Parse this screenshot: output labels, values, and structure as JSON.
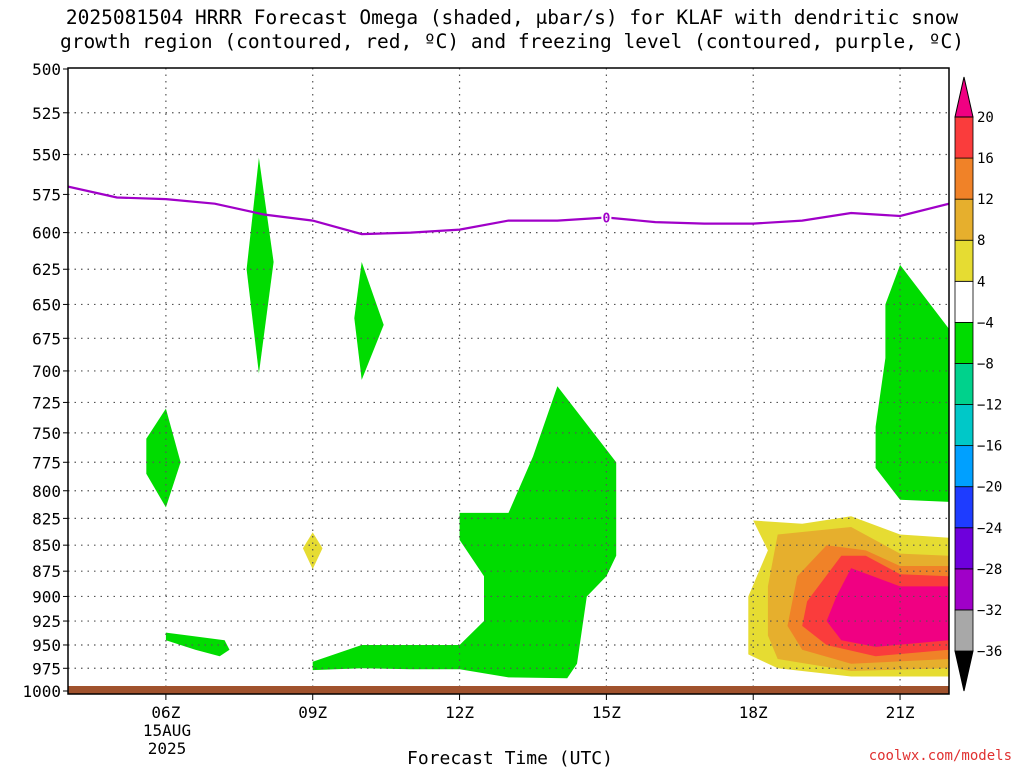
{
  "title_line1": "2025081504 HRRR Forecast Omega (shaded, μbar/s) for KLAF with dendritic snow",
  "title_line2": "growth region (contoured, red, ºC) and freezing level (contoured, purple, ºC)",
  "credit": "coolwx.com/models",
  "chart_data": {
    "type": "heatmap",
    "xlabel": "Forecast Time (UTC)",
    "x_ticks": [
      {
        "hour": 6,
        "label": "06Z"
      },
      {
        "hour": 9,
        "label": "09Z"
      },
      {
        "hour": 12,
        "label": "12Z"
      },
      {
        "hour": 15,
        "label": "15Z"
      },
      {
        "hour": 18,
        "label": "18Z"
      },
      {
        "hour": 21,
        "label": "21Z"
      }
    ],
    "date_label": [
      "15AUG",
      "2025"
    ],
    "xlim": [
      4,
      22
    ],
    "y_scale": "log",
    "ylim": [
      1000,
      500
    ],
    "y_ticks": [
      500,
      525,
      550,
      575,
      600,
      625,
      650,
      675,
      700,
      725,
      750,
      775,
      800,
      825,
      850,
      875,
      900,
      925,
      950,
      975,
      1000
    ],
    "grid": true,
    "colorbar": {
      "levels": [
        -36,
        -32,
        -28,
        -24,
        -20,
        -16,
        -12,
        -8,
        -4,
        4,
        8,
        12,
        16,
        20
      ],
      "colors": [
        "#000000",
        "#a8a8a8",
        "#a000c8",
        "#6e00dc",
        "#1e3cff",
        "#00a0ff",
        "#00c8c8",
        "#00d28c",
        "#00dc00",
        "#ffffff",
        "#e6dc32",
        "#e6af2d",
        "#f08228",
        "#fa3c3c",
        "#f00082"
      ]
    },
    "freezing_level": {
      "color": "#a000c8",
      "label": "0",
      "label_hour": 15,
      "points": [
        [
          4,
          570
        ],
        [
          5,
          577
        ],
        [
          6,
          578
        ],
        [
          7,
          581
        ],
        [
          8,
          588
        ],
        [
          9,
          592
        ],
        [
          10,
          601
        ],
        [
          11,
          600
        ],
        [
          12,
          598
        ],
        [
          13,
          592
        ],
        [
          14,
          592
        ],
        [
          15,
          590
        ],
        [
          16,
          593
        ],
        [
          17,
          594
        ],
        [
          18,
          594
        ],
        [
          19,
          592
        ],
        [
          20,
          587
        ],
        [
          21,
          589
        ],
        [
          22,
          581
        ]
      ]
    },
    "omega_regions": [
      {
        "value_range": [
          -8,
          -4
        ],
        "color": "#00dc00",
        "points": [
          [
            7.9,
            552
          ],
          [
            8.2,
            620
          ],
          [
            7.9,
            702
          ],
          [
            7.65,
            625
          ]
        ]
      },
      {
        "value_range": [
          -8,
          -4
        ],
        "color": "#00dc00",
        "points": [
          [
            10,
            620
          ],
          [
            10.45,
            665
          ],
          [
            10,
            707
          ],
          [
            9.85,
            660
          ]
        ]
      },
      {
        "value_range": [
          -8,
          -4
        ],
        "color": "#00dc00",
        "points": [
          [
            6,
            730
          ],
          [
            6.3,
            775
          ],
          [
            6,
            815
          ],
          [
            5.6,
            785
          ],
          [
            5.6,
            755
          ]
        ]
      },
      {
        "value_range": [
          -8,
          -4
        ],
        "color": "#00dc00",
        "points": [
          [
            6,
            937
          ],
          [
            7.2,
            945
          ],
          [
            7.3,
            955
          ],
          [
            7.1,
            962
          ],
          [
            6.6,
            955
          ],
          [
            6,
            945
          ]
        ]
      },
      {
        "value_range": [
          -8,
          -4
        ],
        "color": "#00dc00",
        "points": [
          [
            14,
            712
          ],
          [
            15.2,
            775
          ],
          [
            15.2,
            815
          ],
          [
            15.2,
            860
          ],
          [
            15,
            880
          ],
          [
            14.6,
            900
          ],
          [
            14.4,
            970
          ],
          [
            14.2,
            986
          ],
          [
            13,
            985
          ],
          [
            12,
            976
          ],
          [
            11,
            976
          ],
          [
            10,
            975
          ],
          [
            9,
            977
          ],
          [
            9,
            968
          ],
          [
            10,
            950
          ],
          [
            12,
            950
          ],
          [
            12.5,
            925
          ],
          [
            12.5,
            880
          ],
          [
            12,
            845
          ],
          [
            12,
            820
          ],
          [
            13,
            820
          ],
          [
            13.5,
            770
          ]
        ]
      },
      {
        "value_range": [
          -8,
          -4
        ],
        "color": "#00dc00",
        "points": [
          [
            21,
            622
          ],
          [
            22,
            668
          ],
          [
            22,
            810
          ],
          [
            21,
            808
          ],
          [
            20.5,
            780
          ],
          [
            20.5,
            745
          ],
          [
            20.7,
            690
          ],
          [
            20.7,
            650
          ]
        ]
      },
      {
        "value_range": [
          4,
          8
        ],
        "color": "#e6dc32",
        "points": [
          [
            9,
            838
          ],
          [
            9.2,
            853
          ],
          [
            9,
            873
          ],
          [
            8.8,
            853
          ]
        ]
      },
      {
        "value_range": [
          4,
          8
        ],
        "color": "#e6dc32",
        "points": [
          [
            18,
            827
          ],
          [
            19,
            830
          ],
          [
            20,
            823
          ],
          [
            21,
            840
          ],
          [
            22,
            843
          ],
          [
            22,
            984
          ],
          [
            20,
            984
          ],
          [
            18.5,
            975
          ],
          [
            17.9,
            960
          ],
          [
            17.9,
            900
          ],
          [
            18.3,
            855
          ]
        ]
      },
      {
        "value_range": [
          8,
          12
        ],
        "color": "#e6af2d",
        "points": [
          [
            18.5,
            840
          ],
          [
            20,
            833
          ],
          [
            21,
            858
          ],
          [
            22,
            860
          ],
          [
            22,
            975
          ],
          [
            20,
            978
          ],
          [
            18.5,
            965
          ],
          [
            18.3,
            940
          ],
          [
            18.3,
            890
          ]
        ]
      },
      {
        "value_range": [
          12,
          16
        ],
        "color": "#f08228",
        "points": [
          [
            19.5,
            850
          ],
          [
            20.3,
            855
          ],
          [
            21,
            870
          ],
          [
            22,
            870
          ],
          [
            22,
            965
          ],
          [
            20,
            970
          ],
          [
            19,
            955
          ],
          [
            18.7,
            930
          ],
          [
            18.9,
            880
          ]
        ]
      },
      {
        "value_range": [
          16,
          20
        ],
        "color": "#fa3c3c",
        "points": [
          [
            19.8,
            860
          ],
          [
            20.3,
            860
          ],
          [
            21,
            878
          ],
          [
            22,
            880
          ],
          [
            22,
            955
          ],
          [
            20.5,
            962
          ],
          [
            19.5,
            950
          ],
          [
            19,
            930
          ],
          [
            19.1,
            905
          ]
        ]
      },
      {
        "value_range": [
          20,
          24
        ],
        "color": "#f00082",
        "points": [
          [
            20,
            872
          ],
          [
            21,
            890
          ],
          [
            22,
            890
          ],
          [
            22,
            945
          ],
          [
            20.5,
            952
          ],
          [
            19.8,
            945
          ],
          [
            19.5,
            925
          ],
          [
            19.7,
            900
          ]
        ]
      }
    ]
  }
}
